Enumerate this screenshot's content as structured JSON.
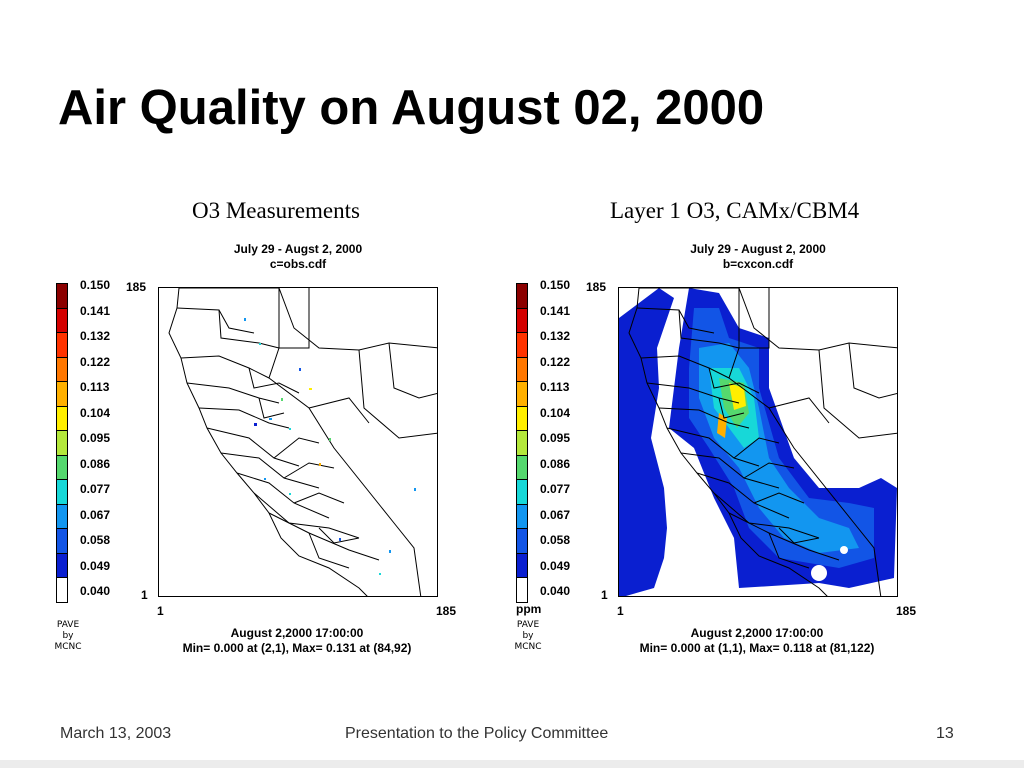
{
  "slide": {
    "title": "Air Quality on August 02, 2000",
    "footer_left": "March 13, 2003",
    "footer_center": "Presentation to the Policy Committee",
    "footer_right": "13"
  },
  "colorbar": {
    "labels": [
      "0.150",
      "0.141",
      "0.132",
      "0.122",
      "0.113",
      "0.104",
      "0.095",
      "0.086",
      "0.077",
      "0.067",
      "0.058",
      "0.049",
      "0.040"
    ],
    "colors": [
      "#8b0000",
      "#d40000",
      "#ff3300",
      "#ff7700",
      "#ffb000",
      "#ffee00",
      "#b4e83c",
      "#55d86e",
      "#17d8d8",
      "#1296f0",
      "#1255e6",
      "#0a1fd0",
      "#ffffff"
    ]
  },
  "panels": [
    {
      "title": "O3 Measurements",
      "subtitle_line1": "July 29 - Augst 2, 2000",
      "subtitle_line2": "c=obs.cdf",
      "y_top": "185",
      "y_bottom": "1",
      "x_left": "1",
      "x_right": "185",
      "time": "August 2,2000 17:00:00",
      "minmax": "Min=   0.000 at (2,1), Max=   0.131 at (84,92)",
      "unit": "",
      "logo": [
        "PAVE",
        "by",
        "MCNC"
      ]
    },
    {
      "title": "Layer 1 O3, CAMx/CBM4",
      "subtitle_line1": "July 29 - August 2, 2000",
      "subtitle_line2": "b=cxcon.cdf",
      "y_top": "185",
      "y_bottom": "1",
      "x_left": "1",
      "x_right": "185",
      "time": "August 2,2000 17:00:00",
      "minmax": "Min=   0.000 at (1,1), Max=   0.118 at (81,122)",
      "unit": "ppm",
      "logo": [
        "PAVE",
        "by",
        "MCNC"
      ]
    }
  ]
}
